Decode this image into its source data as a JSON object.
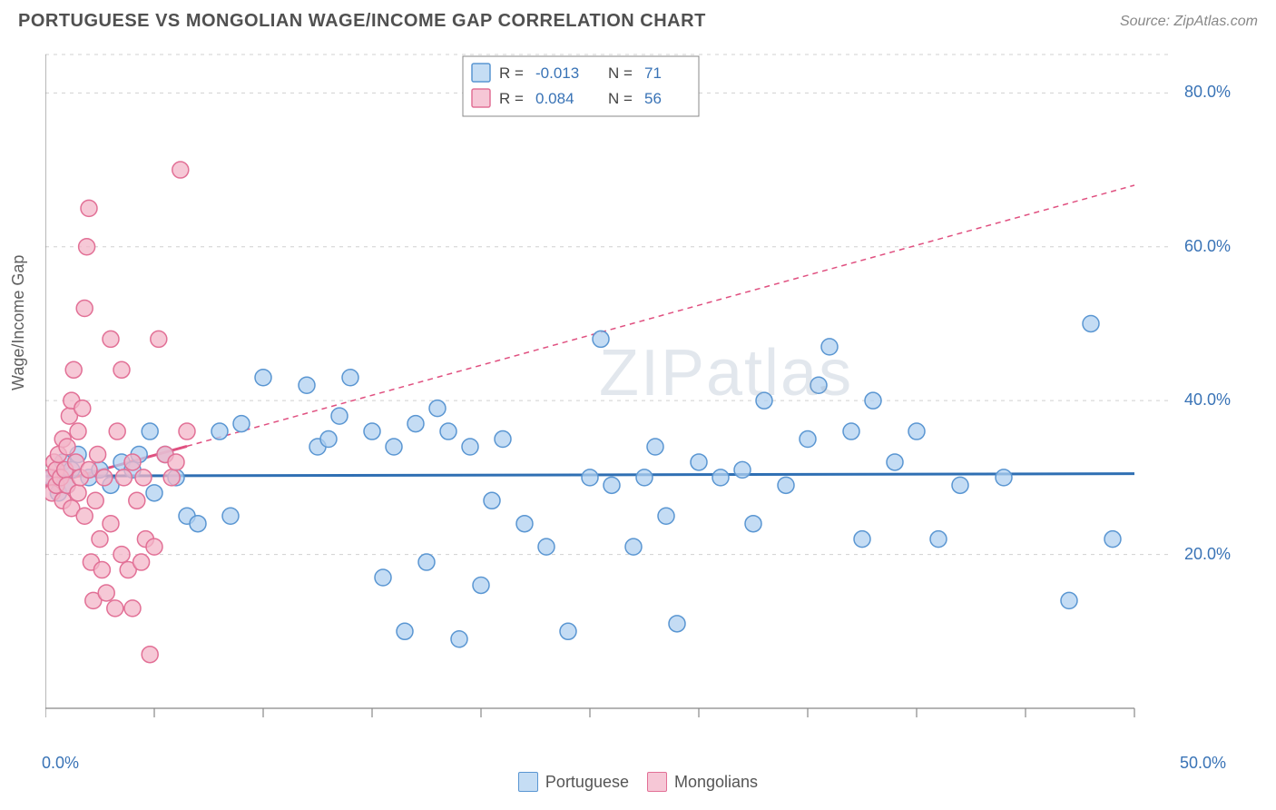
{
  "header": {
    "title": "PORTUGUESE VS MONGOLIAN WAGE/INCOME GAP CORRELATION CHART",
    "source_prefix": "Source: ",
    "source": "ZipAtlas.com"
  },
  "chart": {
    "type": "scatter",
    "ylabel": "Wage/Income Gap",
    "background_color": "#ffffff",
    "axis_color": "#888888",
    "grid_color": "#d0d0d0",
    "tick_color": "#888888",
    "label_color": "#606060",
    "value_color": "#3973b6",
    "xlim": [
      0,
      50
    ],
    "ylim": [
      0,
      85
    ],
    "xticks": [
      0,
      5,
      10,
      15,
      20,
      25,
      30,
      35,
      40,
      45,
      50
    ],
    "xticks_labeled": [
      0,
      50
    ],
    "xtick_labels": {
      "0": "0.0%",
      "50": "50.0%"
    },
    "yticks_labeled": [
      20,
      40,
      60,
      80
    ],
    "ytick_labels": {
      "20": "20.0%",
      "40": "40.0%",
      "60": "60.0%",
      "80": "80.0%"
    },
    "marker_radius": 9,
    "marker_stroke_width": 1.5,
    "trendline_width": 3,
    "trendline_dash": "6,5",
    "watermark": "ZIPatlas",
    "watermark_color": "rgba(150,170,190,0.28)"
  },
  "stats_legend": {
    "border_color": "#888888",
    "bg_color": "#ffffff",
    "text_color_label": "#444444",
    "text_color_value": "#3973b6",
    "rows": [
      {
        "r": "-0.013",
        "n": "71",
        "swatch_fill": "#c5ddf4",
        "swatch_stroke": "#5a96d2"
      },
      {
        "r": "0.084",
        "n": "56",
        "swatch_fill": "#f6c7d6",
        "swatch_stroke": "#e27096"
      }
    ]
  },
  "bottom_legend": [
    {
      "label": "Portuguese",
      "swatch_fill": "#c5ddf4",
      "swatch_stroke": "#5a96d2"
    },
    {
      "label": "Mongolians",
      "swatch_fill": "#f6c7d6",
      "swatch_stroke": "#e27096"
    }
  ],
  "series": [
    {
      "name": "Portuguese",
      "fill": "rgba(176,208,240,0.75)",
      "stroke": "#5a96d2",
      "trend": {
        "x1": 0,
        "y1": 30.2,
        "x2": 50,
        "y2": 30.5,
        "solid_to_x": 50,
        "color": "#2f6fb3"
      },
      "points": [
        [
          0.3,
          30
        ],
        [
          0.6,
          28
        ],
        [
          0.8,
          32
        ],
        [
          1.0,
          29
        ],
        [
          1.2,
          31
        ],
        [
          1.5,
          33
        ],
        [
          2.0,
          30
        ],
        [
          2.5,
          31
        ],
        [
          3.0,
          29
        ],
        [
          3.5,
          32
        ],
        [
          4.0,
          31
        ],
        [
          4.3,
          33
        ],
        [
          4.8,
          36
        ],
        [
          5.0,
          28
        ],
        [
          5.5,
          33
        ],
        [
          6.0,
          30
        ],
        [
          6.5,
          25
        ],
        [
          7.0,
          24
        ],
        [
          8.0,
          36
        ],
        [
          8.5,
          25
        ],
        [
          9.0,
          37
        ],
        [
          10.0,
          43
        ],
        [
          12.0,
          42
        ],
        [
          12.5,
          34
        ],
        [
          13.0,
          35
        ],
        [
          13.5,
          38
        ],
        [
          14.0,
          43
        ],
        [
          15.0,
          36
        ],
        [
          15.5,
          17
        ],
        [
          16.0,
          34
        ],
        [
          16.5,
          10
        ],
        [
          17.0,
          37
        ],
        [
          17.5,
          19
        ],
        [
          18.0,
          39
        ],
        [
          18.5,
          36
        ],
        [
          19.0,
          9
        ],
        [
          19.5,
          34
        ],
        [
          20.0,
          16
        ],
        [
          20.5,
          27
        ],
        [
          21.0,
          35
        ],
        [
          22.0,
          24
        ],
        [
          23.0,
          21
        ],
        [
          24.0,
          10
        ],
        [
          25.0,
          30
        ],
        [
          25.5,
          48
        ],
        [
          26.0,
          29
        ],
        [
          27.0,
          21
        ],
        [
          27.5,
          30
        ],
        [
          28.0,
          34
        ],
        [
          28.5,
          25
        ],
        [
          29.0,
          11
        ],
        [
          30.0,
          32
        ],
        [
          31.0,
          30
        ],
        [
          32.0,
          31
        ],
        [
          32.5,
          24
        ],
        [
          33.0,
          40
        ],
        [
          34.0,
          29
        ],
        [
          35.0,
          35
        ],
        [
          35.5,
          42
        ],
        [
          36.0,
          47
        ],
        [
          37.0,
          36
        ],
        [
          37.5,
          22
        ],
        [
          38.0,
          40
        ],
        [
          39.0,
          32
        ],
        [
          40.0,
          36
        ],
        [
          41.0,
          22
        ],
        [
          42.0,
          29
        ],
        [
          44.0,
          30
        ],
        [
          47.0,
          14
        ],
        [
          48.0,
          50
        ],
        [
          49.0,
          22
        ]
      ]
    },
    {
      "name": "Mongolians",
      "fill": "rgba(243,182,200,0.75)",
      "stroke": "#e27096",
      "trend": {
        "x1": 0,
        "y1": 29,
        "x2": 50,
        "y2": 68,
        "solid_to_x": 6.5,
        "color": "#e05080"
      },
      "points": [
        [
          0.2,
          30
        ],
        [
          0.3,
          28
        ],
        [
          0.4,
          32
        ],
        [
          0.5,
          31
        ],
        [
          0.5,
          29
        ],
        [
          0.6,
          33
        ],
        [
          0.7,
          30
        ],
        [
          0.8,
          27
        ],
        [
          0.8,
          35
        ],
        [
          0.9,
          31
        ],
        [
          1.0,
          34
        ],
        [
          1.0,
          29
        ],
        [
          1.1,
          38
        ],
        [
          1.2,
          40
        ],
        [
          1.2,
          26
        ],
        [
          1.3,
          44
        ],
        [
          1.4,
          32
        ],
        [
          1.5,
          36
        ],
        [
          1.5,
          28
        ],
        [
          1.6,
          30
        ],
        [
          1.7,
          39
        ],
        [
          1.8,
          52
        ],
        [
          1.8,
          25
        ],
        [
          1.9,
          60
        ],
        [
          2.0,
          65
        ],
        [
          2.0,
          31
        ],
        [
          2.1,
          19
        ],
        [
          2.2,
          14
        ],
        [
          2.3,
          27
        ],
        [
          2.4,
          33
        ],
        [
          2.5,
          22
        ],
        [
          2.6,
          18
        ],
        [
          2.7,
          30
        ],
        [
          2.8,
          15
        ],
        [
          3.0,
          48
        ],
        [
          3.0,
          24
        ],
        [
          3.2,
          13
        ],
        [
          3.3,
          36
        ],
        [
          3.5,
          44
        ],
        [
          3.5,
          20
        ],
        [
          3.6,
          30
        ],
        [
          3.8,
          18
        ],
        [
          4.0,
          13
        ],
        [
          4.0,
          32
        ],
        [
          4.2,
          27
        ],
        [
          4.4,
          19
        ],
        [
          4.5,
          30
        ],
        [
          4.6,
          22
        ],
        [
          4.8,
          7
        ],
        [
          5.0,
          21
        ],
        [
          5.2,
          48
        ],
        [
          5.5,
          33
        ],
        [
          5.8,
          30
        ],
        [
          6.0,
          32
        ],
        [
          6.2,
          70
        ],
        [
          6.5,
          36
        ]
      ]
    }
  ]
}
